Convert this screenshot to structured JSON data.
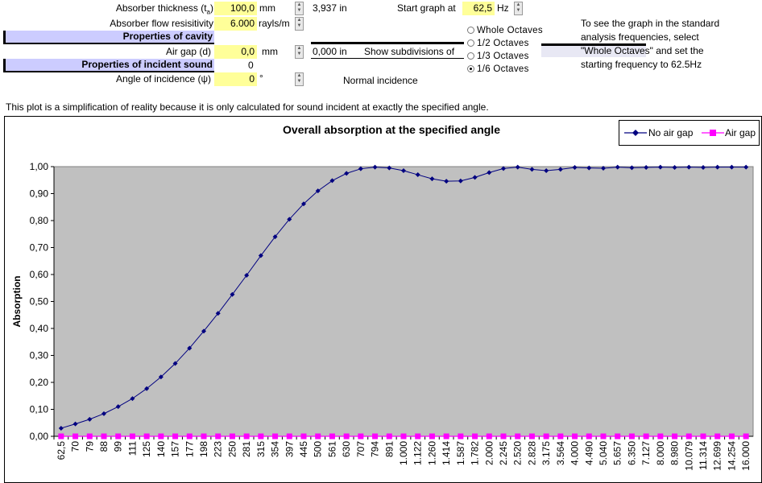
{
  "params": {
    "thickness_label": "Absorber thickness (t",
    "thickness_sub": "a",
    "thickness_close": ")",
    "thickness_value": "100,0",
    "thickness_unit": "mm",
    "thickness_in": "3,937",
    "thickness_in_unit": "in",
    "flow_label": "Absorber flow resisitivity",
    "flow_value": "6.000",
    "flow_unit": "rayls/m",
    "cavity_header": "Properties of cavity",
    "airgap_label": "Air gap (d)",
    "airgap_value": "0,0",
    "airgap_unit": "mm",
    "airgap_in": "0,000",
    "airgap_in_unit": "in",
    "incident_header": "Properties of incident sound",
    "incident_value": "0",
    "angle_label": "Angle of incidence (ψ)",
    "angle_value": "0",
    "angle_unit": "°",
    "normal_incidence": "Normal incidence"
  },
  "graph_controls": {
    "start_label": "Start graph at",
    "start_value": "62,5",
    "start_unit": "Hz",
    "subdiv_label": "Show subdivisions of",
    "options": [
      "Whole Octaves",
      "1/2 Octaves",
      "1/3 Octaves",
      "1/6 Octaves"
    ],
    "selected": 3,
    "note_lines": [
      "To see the graph in the standard",
      "analysis frequencies, select",
      "\"Whole Octaves\" and set the",
      "starting frequency to 62.5Hz"
    ]
  },
  "disclaimer": "This plot is a simplification of reality because it is only calculated for sound incident at exactly the specified angle.",
  "colors": {
    "plot_bg": "#c0c0c0",
    "series1": "#000080",
    "series2": "#ff00ff",
    "highlight_yellow": "#ffff99",
    "header_blue": "#ccccff"
  },
  "chart_data": {
    "type": "line",
    "title": "Overall absorption at the specified angle",
    "xlabel": "",
    "ylabel": "Absorption",
    "ylim": [
      0,
      1
    ],
    "yticks": [
      "0,00",
      "0,10",
      "0,20",
      "0,30",
      "0,40",
      "0,50",
      "0,60",
      "0,70",
      "0,80",
      "0,90",
      "1,00"
    ],
    "grid": false,
    "legend_position": "top-right",
    "categories": [
      "62,5",
      "70",
      "79",
      "88",
      "99",
      "111",
      "125",
      "140",
      "157",
      "177",
      "198",
      "223",
      "250",
      "281",
      "315",
      "354",
      "397",
      "445",
      "500",
      "561",
      "630",
      "707",
      "794",
      "891",
      "1.000",
      "1.122",
      "1.260",
      "1.414",
      "1.587",
      "1.782",
      "2.000",
      "2.245",
      "2.520",
      "2.828",
      "3.175",
      "3.564",
      "4.000",
      "4.490",
      "5.040",
      "5.657",
      "6.350",
      "7.127",
      "8.000",
      "8.980",
      "10.079",
      "11.314",
      "12.699",
      "14.254",
      "16.000"
    ],
    "series": [
      {
        "name": "No air gap",
        "values": [
          0.03,
          0.046,
          0.063,
          0.084,
          0.11,
          0.14,
          0.177,
          0.22,
          0.27,
          0.327,
          0.39,
          0.456,
          0.526,
          0.597,
          0.67,
          0.74,
          0.805,
          0.862,
          0.91,
          0.948,
          0.975,
          0.992,
          0.998,
          0.995,
          0.985,
          0.97,
          0.955,
          0.946,
          0.947,
          0.96,
          0.978,
          0.993,
          0.998,
          0.99,
          0.985,
          0.99,
          0.997,
          0.995,
          0.994,
          0.998,
          0.996,
          0.997,
          0.998,
          0.997,
          0.998,
          0.997,
          0.998,
          0.998,
          0.998
        ]
      },
      {
        "name": "Air gap",
        "values": [
          0,
          0,
          0,
          0,
          0,
          0,
          0,
          0,
          0,
          0,
          0,
          0,
          0,
          0,
          0,
          0,
          0,
          0,
          0,
          0,
          0,
          0,
          0,
          0,
          0,
          0,
          0,
          0,
          0,
          0,
          0,
          0,
          0,
          0,
          0,
          0,
          0,
          0,
          0,
          0,
          0,
          0,
          0,
          0,
          0,
          0,
          0,
          0,
          0
        ]
      }
    ]
  }
}
